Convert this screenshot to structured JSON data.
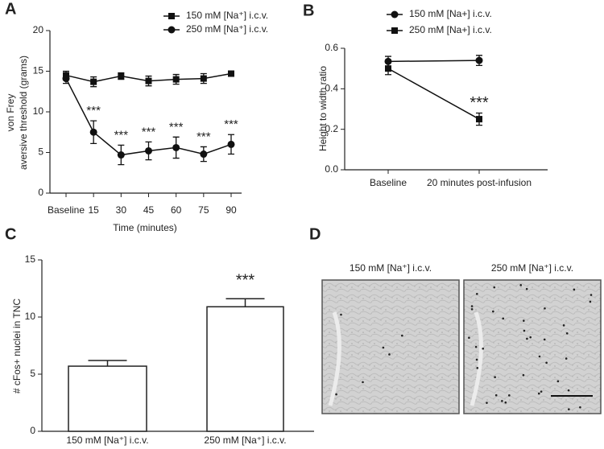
{
  "chart_data": [
    {
      "type": "line",
      "panel": "A",
      "xlabel": "Time (minutes)",
      "ylabel": [
        "von Frey",
        "aversive threshold (grams)"
      ],
      "categories": [
        "Baseline",
        "15",
        "30",
        "45",
        "60",
        "75",
        "90"
      ],
      "series": [
        {
          "name": "150 mM [Na⁺] i.c.v.",
          "color": "#111111",
          "marker": "square",
          "values": [
            14.5,
            13.7,
            14.4,
            13.8,
            14.0,
            14.1,
            14.7
          ],
          "errors": [
            0.5,
            0.6,
            0.4,
            0.6,
            0.6,
            0.6,
            0.3
          ]
        },
        {
          "name": "250 mM [Na⁺] i.c.v.",
          "color": "#111111",
          "marker": "circle",
          "values": [
            14.1,
            7.5,
            4.7,
            5.2,
            5.6,
            4.8,
            6.0
          ],
          "errors": [
            0.6,
            1.4,
            1.2,
            1.1,
            1.3,
            0.9,
            1.2
          ]
        }
      ],
      "annotations": [
        {
          "x": "15",
          "text": "***"
        },
        {
          "x": "30",
          "text": "***"
        },
        {
          "x": "45",
          "text": "***"
        },
        {
          "x": "60",
          "text": "***"
        },
        {
          "x": "75",
          "text": "***"
        },
        {
          "x": "90",
          "text": "***"
        }
      ],
      "ylim": [
        0,
        20
      ],
      "yticks": [
        0,
        5,
        10,
        15,
        20
      ],
      "legend": "upper right"
    },
    {
      "type": "line",
      "panel": "B",
      "ylabel": [
        "Height to width ratio"
      ],
      "categories": [
        "Baseline",
        "20 minutes post-infusion"
      ],
      "series": [
        {
          "name": "150 mM [Na+] i.c.v.",
          "color": "#111111",
          "marker": "circle",
          "values": [
            0.535,
            0.54
          ],
          "errors": [
            0.025,
            0.025
          ]
        },
        {
          "name": "250 mM [Na+] i.c.v.",
          "color": "#111111",
          "marker": "square",
          "values": [
            0.5,
            0.25
          ],
          "errors": [
            0.03,
            0.03
          ]
        }
      ],
      "annotations": [
        {
          "x": "20 minutes post-infusion",
          "text": "***"
        }
      ],
      "ylim": [
        0,
        0.6
      ],
      "yticks": [
        {
          "value": 0,
          "label": "0.0"
        },
        0.2,
        0.4,
        0.6
      ],
      "legend": "upper right"
    },
    {
      "type": "bar",
      "panel": "C",
      "ylabel": [
        "# cFos+ nuclei in TNC"
      ],
      "categories": [
        "150 mM [Na⁺] i.c.v.",
        "250 mM [Na⁺] i.c.v."
      ],
      "values": [
        5.7,
        10.9
      ],
      "errors": [
        0.5,
        0.7
      ],
      "color": "#ffffff",
      "annotations": [
        {
          "x": "250 mM [Na⁺] i.c.v.",
          "text": "***"
        }
      ],
      "ylim": [
        0,
        15
      ],
      "yticks": [
        0,
        5,
        10,
        15
      ]
    },
    {
      "type": "image",
      "panel": "D",
      "images": [
        {
          "title": "150 mM [Na⁺] i.c.v."
        },
        {
          "title": "250 mM [Na⁺] i.c.v."
        }
      ]
    }
  ]
}
